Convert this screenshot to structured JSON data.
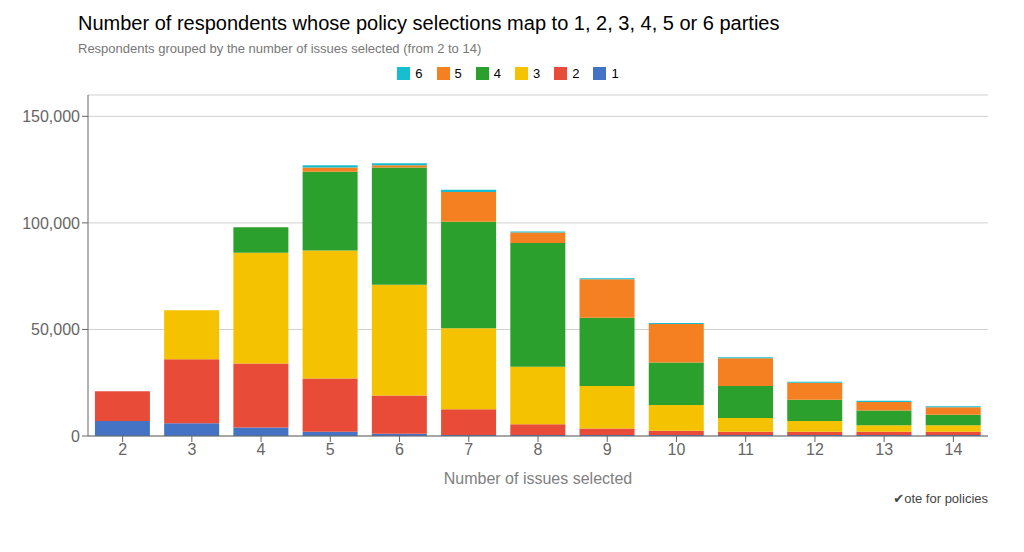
{
  "chart_data": {
    "type": "bar",
    "title": "Number of respondents whose policy selections map to 1, 2, 3, 4, 5 or 6 parties",
    "subtitle": "Respondents grouped by the number of issues selected (from 2 to 14)",
    "xlabel": "Number of issues selected",
    "categories": [
      2,
      3,
      4,
      5,
      6,
      7,
      8,
      9,
      10,
      11,
      12,
      13,
      14
    ],
    "series": [
      {
        "name": "1",
        "color": "#4472c4",
        "values": [
          7000,
          6000,
          4000,
          2000,
          1000,
          500,
          500,
          500,
          500,
          500,
          500,
          500,
          500
        ]
      },
      {
        "name": "2",
        "color": "#e84c39",
        "values": [
          14000,
          30000,
          30000,
          25000,
          18000,
          12000,
          5000,
          3000,
          2000,
          1500,
          1500,
          1500,
          1500
        ]
      },
      {
        "name": "3",
        "color": "#f5c200",
        "values": [
          0,
          23000,
          52000,
          60000,
          52000,
          38000,
          27000,
          20000,
          12000,
          6500,
          5000,
          3000,
          3000
        ]
      },
      {
        "name": "4",
        "color": "#2ca02c",
        "values": [
          0,
          0,
          12000,
          37000,
          55000,
          50000,
          58000,
          32000,
          20000,
          15000,
          10000,
          7000,
          5000
        ]
      },
      {
        "name": "5",
        "color": "#f58021",
        "values": [
          0,
          0,
          0,
          2000,
          1000,
          14000,
          5000,
          18000,
          18000,
          13000,
          8000,
          4000,
          3500
        ]
      },
      {
        "name": "6",
        "color": "#17becf",
        "values": [
          0,
          0,
          0,
          1000,
          1000,
          1000,
          500,
          500,
          500,
          500,
          500,
          500,
          500
        ]
      }
    ],
    "stacked": true,
    "ylim": [
      0,
      160000
    ],
    "yticks": [
      0,
      {
        "value": 50000,
        "label": "50,000"
      },
      {
        "value": 100000,
        "label": "100,000"
      },
      {
        "value": 150000,
        "label": "150,000"
      }
    ],
    "grid": true,
    "legend": "top",
    "annotations": [
      "✔ote for policies"
    ]
  }
}
